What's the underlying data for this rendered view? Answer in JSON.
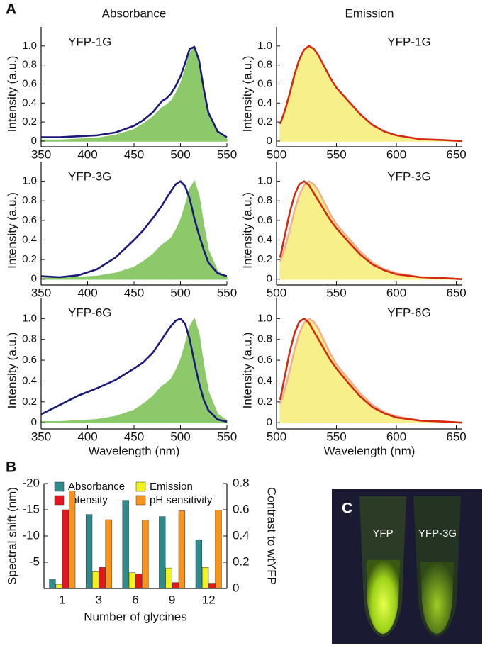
{
  "chart_data": [
    {
      "type": "line",
      "panel_label": "A",
      "title": "Absorbance",
      "label": "YFP-1G",
      "label_corner": "top-left",
      "ylabel": "Intensity (a.u.)",
      "x": [
        350,
        370,
        390,
        410,
        430,
        450,
        460,
        470,
        480,
        485,
        490,
        495,
        500,
        505,
        510,
        515,
        520,
        525,
        530,
        540,
        550
      ],
      "series": [
        {
          "color": "#8cc96a",
          "fill": true,
          "values": [
            0.01,
            0.01,
            0.02,
            0.03,
            0.06,
            0.12,
            0.18,
            0.25,
            0.35,
            0.38,
            0.42,
            0.5,
            0.6,
            0.75,
            0.92,
            1.0,
            0.85,
            0.55,
            0.3,
            0.08,
            0.02
          ]
        },
        {
          "color": "#1c1a78",
          "values": [
            0.04,
            0.04,
            0.05,
            0.06,
            0.09,
            0.16,
            0.22,
            0.3,
            0.42,
            0.45,
            0.5,
            0.58,
            0.68,
            0.82,
            0.97,
            0.99,
            0.85,
            0.55,
            0.3,
            0.1,
            0.04
          ]
        }
      ],
      "xlim": [
        350,
        550
      ],
      "xticks": [
        350,
        400,
        450,
        500,
        550
      ],
      "ylim": [
        -0.06,
        1.2
      ],
      "yticks": [
        0,
        0.2,
        0.4,
        0.6,
        0.8,
        {
          "value": 1,
          "label": "1.0"
        }
      ]
    },
    {
      "type": "line",
      "title": "Emission",
      "label": "YFP-1G",
      "label_corner": "top-right",
      "ylabel": "Intensity (a.u.)",
      "x": [
        503,
        507,
        511,
        515,
        519,
        523,
        527,
        531,
        535,
        540,
        545,
        550,
        560,
        570,
        580,
        590,
        600,
        620,
        640,
        655
      ],
      "series": [
        {
          "color": "#f7f08a",
          "fill": true,
          "values": [
            0.18,
            0.32,
            0.5,
            0.7,
            0.86,
            0.96,
            1.0,
            0.97,
            0.9,
            0.78,
            0.66,
            0.56,
            0.42,
            0.28,
            0.17,
            0.1,
            0.06,
            0.02,
            0.01,
            0.0
          ]
        },
        {
          "color": "#d42a10",
          "values": [
            0.18,
            0.32,
            0.5,
            0.7,
            0.86,
            0.96,
            1.0,
            0.97,
            0.9,
            0.78,
            0.66,
            0.56,
            0.42,
            0.28,
            0.17,
            0.1,
            0.06,
            0.02,
            0.01,
            0.0
          ]
        }
      ],
      "xlim": [
        500,
        655
      ],
      "xticks": [
        500,
        550,
        600,
        650
      ],
      "ylim": [
        -0.06,
        1.2
      ],
      "yticks": [
        0,
        0.2,
        0.4,
        0.6,
        0.8,
        {
          "value": 1,
          "label": "1.0"
        }
      ]
    },
    {
      "type": "line",
      "label": "YFP-3G",
      "label_corner": "top-left",
      "ylabel": "Intensity (a.u.)",
      "x": [
        350,
        370,
        390,
        410,
        430,
        450,
        460,
        470,
        480,
        485,
        490,
        495,
        500,
        505,
        510,
        515,
        520,
        525,
        530,
        540,
        550
      ],
      "series": [
        {
          "color": "#8cc96a",
          "fill": true,
          "values": [
            0.01,
            0.01,
            0.02,
            0.03,
            0.06,
            0.12,
            0.18,
            0.25,
            0.35,
            0.38,
            0.42,
            0.5,
            0.6,
            0.75,
            0.92,
            1.0,
            0.85,
            0.55,
            0.3,
            0.08,
            0.02
          ]
        },
        {
          "color": "#1c1a78",
          "values": [
            0.03,
            0.02,
            0.04,
            0.1,
            0.22,
            0.4,
            0.5,
            0.62,
            0.75,
            0.83,
            0.9,
            0.97,
            1.0,
            0.95,
            0.82,
            0.62,
            0.45,
            0.3,
            0.17,
            0.06,
            0.03
          ]
        }
      ],
      "xlim": [
        350,
        550
      ],
      "xticks": [
        350,
        400,
        450,
        500,
        550
      ],
      "ylim": [
        -0.06,
        1.2
      ],
      "yticks": [
        0,
        0.2,
        0.4,
        0.6,
        0.8,
        {
          "value": 1,
          "label": "1.0"
        }
      ]
    },
    {
      "type": "line",
      "label": "YFP-3G",
      "label_corner": "top-right",
      "ylabel": "Intensity (a.u.)",
      "x": [
        503,
        507,
        511,
        515,
        519,
        523,
        527,
        531,
        535,
        540,
        545,
        550,
        560,
        570,
        580,
        590,
        600,
        620,
        640,
        655
      ],
      "series": [
        {
          "color": "#f7f08a",
          "fill": true,
          "values": [
            0.18,
            0.32,
            0.5,
            0.7,
            0.86,
            0.96,
            1.0,
            0.97,
            0.9,
            0.78,
            0.66,
            0.56,
            0.42,
            0.28,
            0.17,
            0.1,
            0.06,
            0.02,
            0.01,
            0.0
          ]
        },
        {
          "color": "#f4b08e",
          "values": [
            0.18,
            0.32,
            0.5,
            0.7,
            0.86,
            0.96,
            1.0,
            0.97,
            0.9,
            0.78,
            0.66,
            0.56,
            0.42,
            0.28,
            0.17,
            0.1,
            0.06,
            0.02,
            0.01,
            0.0
          ]
        },
        {
          "color": "#d42a10",
          "values": [
            0.22,
            0.45,
            0.68,
            0.86,
            0.97,
            1.0,
            0.96,
            0.88,
            0.8,
            0.7,
            0.6,
            0.52,
            0.38,
            0.25,
            0.15,
            0.09,
            0.05,
            0.02,
            0.01,
            0.0
          ]
        }
      ],
      "xlim": [
        500,
        655
      ],
      "xticks": [
        500,
        550,
        600,
        650
      ],
      "ylim": [
        -0.06,
        1.2
      ],
      "yticks": [
        0,
        0.2,
        0.4,
        0.6,
        0.8,
        {
          "value": 1,
          "label": "1.0"
        }
      ]
    },
    {
      "type": "line",
      "label": "YFP-6G",
      "label_corner": "top-left",
      "ylabel": "Intensity (a.u.)",
      "xlabel": "Wavelength (nm)",
      "x": [
        350,
        370,
        390,
        410,
        430,
        450,
        460,
        470,
        480,
        485,
        490,
        495,
        500,
        505,
        510,
        515,
        520,
        525,
        530,
        540,
        550
      ],
      "series": [
        {
          "color": "#8cc96a",
          "fill": true,
          "values": [
            0.01,
            0.01,
            0.02,
            0.03,
            0.06,
            0.12,
            0.18,
            0.25,
            0.35,
            0.38,
            0.42,
            0.5,
            0.6,
            0.75,
            0.92,
            1.0,
            0.85,
            0.55,
            0.3,
            0.08,
            0.02
          ]
        },
        {
          "color": "#1c1a78",
          "values": [
            0.08,
            0.17,
            0.26,
            0.33,
            0.41,
            0.52,
            0.58,
            0.67,
            0.8,
            0.87,
            0.93,
            0.98,
            1.0,
            0.95,
            0.8,
            0.58,
            0.38,
            0.22,
            0.12,
            0.03,
            0.01
          ]
        }
      ],
      "xlim": [
        350,
        550
      ],
      "xticks": [
        350,
        400,
        450,
        500,
        550
      ],
      "ylim": [
        -0.06,
        1.2
      ],
      "yticks": [
        0,
        0.2,
        0.4,
        0.6,
        0.8,
        {
          "value": 1,
          "label": "1.0"
        }
      ]
    },
    {
      "type": "line",
      "label": "YFP-6G",
      "label_corner": "top-right",
      "ylabel": "Intensity (a.u.)",
      "xlabel": "Wavelength (nm)",
      "x": [
        503,
        507,
        511,
        515,
        519,
        523,
        527,
        531,
        535,
        540,
        545,
        550,
        560,
        570,
        580,
        590,
        600,
        620,
        640,
        655
      ],
      "series": [
        {
          "color": "#f7f08a",
          "fill": true,
          "values": [
            0.18,
            0.32,
            0.5,
            0.7,
            0.86,
            0.96,
            1.0,
            0.97,
            0.9,
            0.78,
            0.66,
            0.56,
            0.42,
            0.28,
            0.17,
            0.1,
            0.06,
            0.02,
            0.01,
            0.0
          ]
        },
        {
          "color": "#f4b08e",
          "values": [
            0.18,
            0.32,
            0.5,
            0.7,
            0.86,
            0.96,
            1.0,
            0.97,
            0.9,
            0.78,
            0.66,
            0.56,
            0.42,
            0.28,
            0.17,
            0.1,
            0.06,
            0.02,
            0.01,
            0.0
          ]
        },
        {
          "color": "#d42a10",
          "values": [
            0.22,
            0.45,
            0.68,
            0.86,
            0.97,
            1.0,
            0.96,
            0.88,
            0.8,
            0.7,
            0.6,
            0.52,
            0.38,
            0.25,
            0.15,
            0.09,
            0.05,
            0.02,
            0.01,
            0.0
          ]
        }
      ],
      "xlim": [
        500,
        655
      ],
      "xticks": [
        500,
        550,
        600,
        650
      ],
      "ylim": [
        -0.06,
        1.2
      ],
      "yticks": [
        0,
        0.2,
        0.4,
        0.6,
        0.8,
        {
          "value": 1,
          "label": "1.0"
        }
      ]
    },
    {
      "type": "bar",
      "panel_label": "B",
      "xlabel": "Number of glycines",
      "ylabel": "Spectral shift (nm)",
      "y2label": "Contrast to wtYFP",
      "categories": [
        "1",
        "3",
        "6",
        "9",
        "12"
      ],
      "series": [
        {
          "name": "Absorbance",
          "color": "#2f8a8c",
          "values": [
            -1.8,
            -14.1,
            -16.8,
            -13.7,
            -9.3
          ]
        },
        {
          "name": "Emission",
          "color": "#f2f21c",
          "values": [
            -0.8,
            -3.2,
            -3.0,
            -3.9,
            -4.0
          ]
        },
        {
          "name": "Intensity",
          "color": "#e8141c",
          "axis": "y2",
          "values": [
            0.6,
            0.16,
            0.11,
            0.045,
            0.04
          ]
        },
        {
          "name": "pH sensitivity",
          "color": "#f7941d",
          "axis": "y2",
          "values": [
            0.744,
            0.524,
            0.52,
            0.592,
            0.596
          ]
        }
      ],
      "ylim": [
        0,
        -20
      ],
      "yticks": [
        -20,
        -15,
        -10,
        -5
      ],
      "y2lim": [
        0,
        0.8
      ],
      "y2ticks": [
        0,
        0.2,
        0.4,
        0.6,
        0.8
      ],
      "legend_position": "top"
    }
  ],
  "photo": {
    "panel_label": "C",
    "labels": [
      "YFP",
      "YFP-3G"
    ]
  }
}
